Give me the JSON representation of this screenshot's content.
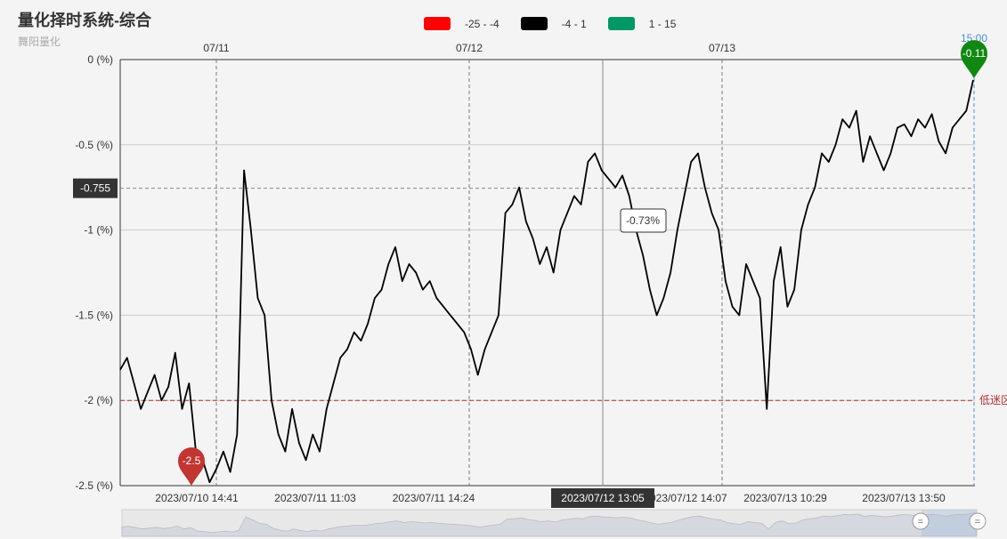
{
  "title": "量化择时系统-综合",
  "subtitle": "舞阳量化",
  "legend": [
    {
      "label": "-25 - -4",
      "color": "#ff0000"
    },
    {
      "label": "-4 - 1",
      "color": "#000000"
    },
    {
      "label": "1 - 15",
      "color": "#009966"
    }
  ],
  "chart_data": {
    "type": "line",
    "ylim": [
      -2.5,
      0
    ],
    "yticks": [
      {
        "value": 0,
        "label": "0 (%)"
      },
      {
        "value": -0.5,
        "label": "-0.5 (%)"
      },
      {
        "value": -1,
        "label": "-1 (%)"
      },
      {
        "value": -1.5,
        "label": "-1.5 (%)"
      },
      {
        "value": -2,
        "label": "-2 (%)"
      },
      {
        "value": -2.5,
        "label": "-2.5 (%)"
      }
    ],
    "xticks": [
      "2023/07/10 14:41",
      "2023/07/11 11:03",
      "2023/07/11 14:24",
      "2023/07/12 13:05",
      "2023/07/12 14:07",
      "2023/07/13 10:29",
      "2023/07/13 13:50"
    ],
    "day_markers": [
      "07/11",
      "07/12",
      "07/13"
    ],
    "series": [
      {
        "color": "#000000",
        "values": [
          -1.82,
          -1.75,
          -1.9,
          -2.05,
          -1.95,
          -1.85,
          -2.0,
          -1.92,
          -1.72,
          -2.05,
          -1.9,
          -2.3,
          -2.35,
          -2.48,
          -2.4,
          -2.3,
          -2.42,
          -2.2,
          -0.65,
          -1.0,
          -1.4,
          -1.5,
          -2.0,
          -2.2,
          -2.3,
          -2.05,
          -2.25,
          -2.35,
          -2.2,
          -2.3,
          -2.05,
          -1.9,
          -1.75,
          -1.7,
          -1.6,
          -1.65,
          -1.55,
          -1.4,
          -1.35,
          -1.2,
          -1.1,
          -1.3,
          -1.2,
          -1.25,
          -1.35,
          -1.3,
          -1.4,
          -1.45,
          -1.5,
          -1.55,
          -1.6,
          -1.7,
          -1.85,
          -1.7,
          -1.6,
          -1.5,
          -0.9,
          -0.85,
          -0.75,
          -0.95,
          -1.05,
          -1.2,
          -1.1,
          -1.25,
          -1.0,
          -0.9,
          -0.8,
          -0.85,
          -0.6,
          -0.55,
          -0.65,
          -0.7,
          -0.75,
          -0.68,
          -0.8,
          -1.0,
          -1.15,
          -1.35,
          -1.5,
          -1.4,
          -1.25,
          -1.0,
          -0.8,
          -0.6,
          -0.55,
          -0.75,
          -0.9,
          -1.0,
          -1.3,
          -1.45,
          -1.5,
          -1.2,
          -1.3,
          -1.4,
          -2.05,
          -1.3,
          -1.1,
          -1.45,
          -1.35,
          -1.0,
          -0.85,
          -0.75,
          -0.55,
          -0.6,
          -0.5,
          -0.35,
          -0.4,
          -0.3,
          -0.6,
          -0.45,
          -0.55,
          -0.65,
          -0.55,
          -0.4,
          -0.38,
          -0.45,
          -0.35,
          -0.4,
          -0.32,
          -0.48,
          -0.55,
          -0.4,
          -0.35,
          -0.3,
          -0.12
        ]
      }
    ],
    "current_price_label": "-0.755",
    "current_price_value": -0.755,
    "tooltip_text": "-0.73%",
    "x_pointer_label": "2023/07/12 13:05",
    "min_marker": {
      "label": "-2.5",
      "value": -2.5
    },
    "max_marker": {
      "label": "-0.11",
      "value": -0.11
    },
    "last_time_label": "15:00",
    "markline": {
      "value": -2,
      "label": "低迷区"
    }
  }
}
